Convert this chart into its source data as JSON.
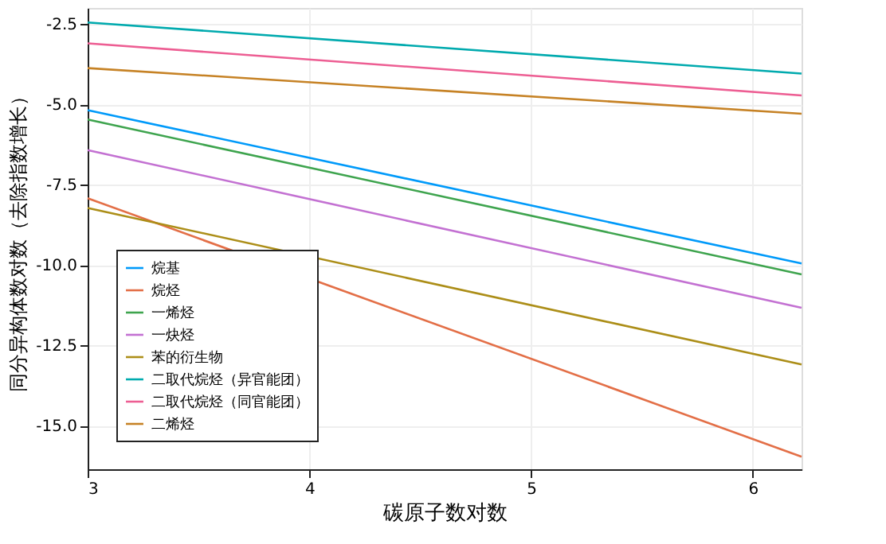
{
  "chart_data": {
    "type": "line",
    "xlabel": "碳原子数对数",
    "ylabel": "同分异构体数对数（去除指数增长）",
    "x": [
      3,
      6.22
    ],
    "xlim": [
      3,
      6.22
    ],
    "xticks": [
      3,
      4,
      5,
      6
    ],
    "ylim": [
      -16.35,
      -2.0
    ],
    "yticks": [
      {
        "value": -15,
        "label": "-15.0"
      },
      {
        "value": -12.5,
        "label": "-12.5"
      },
      {
        "value": -10,
        "label": "-10.0"
      },
      {
        "value": -7.5,
        "label": "-7.5"
      },
      {
        "value": -5,
        "label": "-5.0"
      },
      {
        "value": -2.5,
        "label": "-2.5"
      }
    ],
    "grid": true,
    "legend": "bottom left",
    "line_style": "solid",
    "marker": "none",
    "series": [
      {
        "name": "烷基",
        "color": "#009afa",
        "values": [
          -5.18,
          -9.95
        ]
      },
      {
        "name": "烷烃",
        "color": "#e36f47",
        "values": [
          -7.92,
          -15.96
        ]
      },
      {
        "name": "一烯烃",
        "color": "#3ea44e",
        "values": [
          -5.47,
          -10.29
        ]
      },
      {
        "name": "一炔烃",
        "color": "#c371d2",
        "values": [
          -6.42,
          -11.33
        ]
      },
      {
        "name": "苯的衍生物",
        "color": "#ac8e18",
        "values": [
          -8.22,
          -13.09
        ]
      },
      {
        "name": "二取代烷烃（异官能团）",
        "color": "#00aaae",
        "values": [
          -2.45,
          -4.04
        ]
      },
      {
        "name": "二取代烷烃（同官能团）",
        "color": "#ed5e93",
        "values": [
          -3.1,
          -4.72
        ]
      },
      {
        "name": "二烯烃",
        "color": "#c68225",
        "values": [
          -3.87,
          -5.29
        ]
      }
    ]
  }
}
